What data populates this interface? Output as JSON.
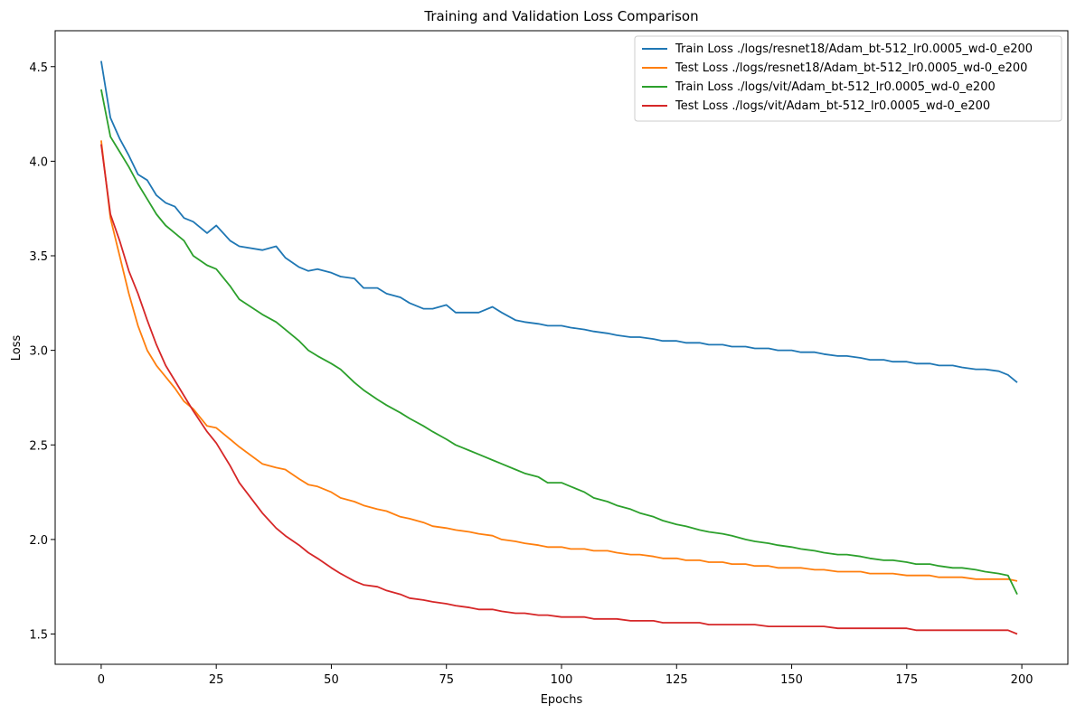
{
  "chart_data": {
    "type": "line",
    "title": "Training and Validation Loss Comparison",
    "xlabel": "Epochs",
    "ylabel": "Loss",
    "xlim": [
      -10,
      210
    ],
    "ylim": [
      1.34,
      4.69
    ],
    "xticks": [
      0,
      25,
      50,
      75,
      100,
      125,
      150,
      175,
      200
    ],
    "yticks": [
      1.5,
      2.0,
      2.5,
      3.0,
      3.5,
      4.0,
      4.5
    ],
    "ytick_labels": [
      "1.5",
      "2.0",
      "2.5",
      "3.0",
      "3.5",
      "4.0",
      "4.5"
    ],
    "grid": false,
    "legend_position": "top-right",
    "series": [
      {
        "name": "Train Loss ./logs/resnet18/Adam_bt-512_lr0.0005_wd-0_e200",
        "color": "#1f77b4",
        "x": [
          0,
          2,
          4,
          6,
          8,
          10,
          12,
          14,
          16,
          18,
          20,
          23,
          25,
          28,
          30,
          35,
          38,
          40,
          43,
          45,
          47,
          50,
          52,
          55,
          57,
          60,
          62,
          65,
          67,
          70,
          72,
          75,
          77,
          80,
          82,
          85,
          87,
          90,
          92,
          95,
          97,
          100,
          102,
          105,
          107,
          110,
          112,
          115,
          117,
          120,
          122,
          125,
          127,
          130,
          132,
          135,
          137,
          140,
          142,
          145,
          147,
          150,
          152,
          155,
          157,
          160,
          162,
          165,
          167,
          170,
          172,
          175,
          177,
          180,
          182,
          185,
          187,
          190,
          192,
          195,
          197,
          199
        ],
        "y": [
          4.53,
          4.23,
          4.12,
          4.03,
          3.93,
          3.9,
          3.82,
          3.78,
          3.76,
          3.7,
          3.68,
          3.62,
          3.66,
          3.58,
          3.55,
          3.53,
          3.55,
          3.49,
          3.44,
          3.42,
          3.43,
          3.41,
          3.39,
          3.38,
          3.33,
          3.33,
          3.3,
          3.28,
          3.25,
          3.22,
          3.22,
          3.24,
          3.2,
          3.2,
          3.2,
          3.23,
          3.2,
          3.16,
          3.15,
          3.14,
          3.13,
          3.13,
          3.12,
          3.11,
          3.1,
          3.09,
          3.08,
          3.07,
          3.07,
          3.06,
          3.05,
          3.05,
          3.04,
          3.04,
          3.03,
          3.03,
          3.02,
          3.02,
          3.01,
          3.01,
          3.0,
          3.0,
          2.99,
          2.99,
          2.98,
          2.97,
          2.97,
          2.96,
          2.95,
          2.95,
          2.94,
          2.94,
          2.93,
          2.93,
          2.92,
          2.92,
          2.91,
          2.9,
          2.9,
          2.89,
          2.87,
          2.83
        ]
      },
      {
        "name": "Test Loss ./logs/resnet18/Adam_bt-512_lr0.0005_wd-0_e200",
        "color": "#ff7f0e",
        "x": [
          0,
          2,
          4,
          6,
          8,
          10,
          12,
          14,
          16,
          18,
          20,
          23,
          25,
          28,
          30,
          35,
          38,
          40,
          43,
          45,
          47,
          50,
          52,
          55,
          57,
          60,
          62,
          65,
          67,
          70,
          72,
          75,
          77,
          80,
          82,
          85,
          87,
          90,
          92,
          95,
          97,
          100,
          102,
          105,
          107,
          110,
          112,
          115,
          117,
          120,
          122,
          125,
          127,
          130,
          132,
          135,
          137,
          140,
          142,
          145,
          147,
          150,
          152,
          155,
          157,
          160,
          162,
          165,
          167,
          170,
          172,
          175,
          177,
          180,
          182,
          185,
          187,
          190,
          192,
          195,
          197,
          199
        ],
        "y": [
          4.11,
          3.7,
          3.5,
          3.3,
          3.13,
          3.0,
          2.92,
          2.86,
          2.8,
          2.73,
          2.69,
          2.6,
          2.59,
          2.53,
          2.49,
          2.4,
          2.38,
          2.37,
          2.32,
          2.29,
          2.28,
          2.25,
          2.22,
          2.2,
          2.18,
          2.16,
          2.15,
          2.12,
          2.11,
          2.09,
          2.07,
          2.06,
          2.05,
          2.04,
          2.03,
          2.02,
          2.0,
          1.99,
          1.98,
          1.97,
          1.96,
          1.96,
          1.95,
          1.95,
          1.94,
          1.94,
          1.93,
          1.92,
          1.92,
          1.91,
          1.9,
          1.9,
          1.89,
          1.89,
          1.88,
          1.88,
          1.87,
          1.87,
          1.86,
          1.86,
          1.85,
          1.85,
          1.85,
          1.84,
          1.84,
          1.83,
          1.83,
          1.83,
          1.82,
          1.82,
          1.82,
          1.81,
          1.81,
          1.81,
          1.8,
          1.8,
          1.8,
          1.79,
          1.79,
          1.79,
          1.79,
          1.78
        ]
      },
      {
        "name": "Train Loss ./logs/vit/Adam_bt-512_lr0.0005_wd-0_e200",
        "color": "#2ca02c",
        "x": [
          0,
          2,
          4,
          6,
          8,
          10,
          12,
          14,
          16,
          18,
          20,
          23,
          25,
          28,
          30,
          35,
          38,
          40,
          43,
          45,
          47,
          50,
          52,
          55,
          57,
          60,
          62,
          65,
          67,
          70,
          72,
          75,
          77,
          80,
          82,
          85,
          87,
          90,
          92,
          95,
          97,
          100,
          102,
          105,
          107,
          110,
          112,
          115,
          117,
          120,
          122,
          125,
          127,
          130,
          132,
          135,
          137,
          140,
          142,
          145,
          147,
          150,
          152,
          155,
          157,
          160,
          162,
          165,
          167,
          170,
          172,
          175,
          177,
          180,
          182,
          185,
          187,
          190,
          192,
          195,
          197,
          199
        ],
        "y": [
          4.38,
          4.13,
          4.05,
          3.97,
          3.88,
          3.8,
          3.72,
          3.66,
          3.62,
          3.58,
          3.5,
          3.45,
          3.43,
          3.34,
          3.27,
          3.19,
          3.15,
          3.11,
          3.05,
          3.0,
          2.97,
          2.93,
          2.9,
          2.83,
          2.79,
          2.74,
          2.71,
          2.67,
          2.64,
          2.6,
          2.57,
          2.53,
          2.5,
          2.47,
          2.45,
          2.42,
          2.4,
          2.37,
          2.35,
          2.33,
          2.3,
          2.3,
          2.28,
          2.25,
          2.22,
          2.2,
          2.18,
          2.16,
          2.14,
          2.12,
          2.1,
          2.08,
          2.07,
          2.05,
          2.04,
          2.03,
          2.02,
          2.0,
          1.99,
          1.98,
          1.97,
          1.96,
          1.95,
          1.94,
          1.93,
          1.92,
          1.92,
          1.91,
          1.9,
          1.89,
          1.89,
          1.88,
          1.87,
          1.87,
          1.86,
          1.85,
          1.85,
          1.84,
          1.83,
          1.82,
          1.81,
          1.71
        ]
      },
      {
        "name": "Test Loss ./logs/vit/Adam_bt-512_lr0.0005_wd-0_e200",
        "color": "#d62728",
        "x": [
          0,
          2,
          4,
          6,
          8,
          10,
          12,
          14,
          16,
          18,
          20,
          23,
          25,
          28,
          30,
          35,
          38,
          40,
          43,
          45,
          47,
          50,
          52,
          55,
          57,
          60,
          62,
          65,
          67,
          70,
          72,
          75,
          77,
          80,
          82,
          85,
          87,
          90,
          92,
          95,
          97,
          100,
          102,
          105,
          107,
          110,
          112,
          115,
          117,
          120,
          122,
          125,
          127,
          130,
          132,
          135,
          137,
          140,
          142,
          145,
          147,
          150,
          152,
          155,
          157,
          160,
          162,
          165,
          167,
          170,
          172,
          175,
          177,
          180,
          182,
          185,
          187,
          190,
          192,
          195,
          197,
          199
        ],
        "y": [
          4.09,
          3.72,
          3.58,
          3.42,
          3.3,
          3.16,
          3.03,
          2.92,
          2.84,
          2.76,
          2.68,
          2.57,
          2.51,
          2.39,
          2.3,
          2.14,
          2.06,
          2.02,
          1.97,
          1.93,
          1.9,
          1.85,
          1.82,
          1.78,
          1.76,
          1.75,
          1.73,
          1.71,
          1.69,
          1.68,
          1.67,
          1.66,
          1.65,
          1.64,
          1.63,
          1.63,
          1.62,
          1.61,
          1.61,
          1.6,
          1.6,
          1.59,
          1.59,
          1.59,
          1.58,
          1.58,
          1.58,
          1.57,
          1.57,
          1.57,
          1.56,
          1.56,
          1.56,
          1.56,
          1.55,
          1.55,
          1.55,
          1.55,
          1.55,
          1.54,
          1.54,
          1.54,
          1.54,
          1.54,
          1.54,
          1.53,
          1.53,
          1.53,
          1.53,
          1.53,
          1.53,
          1.53,
          1.52,
          1.52,
          1.52,
          1.52,
          1.52,
          1.52,
          1.52,
          1.52,
          1.52,
          1.5
        ]
      }
    ]
  }
}
